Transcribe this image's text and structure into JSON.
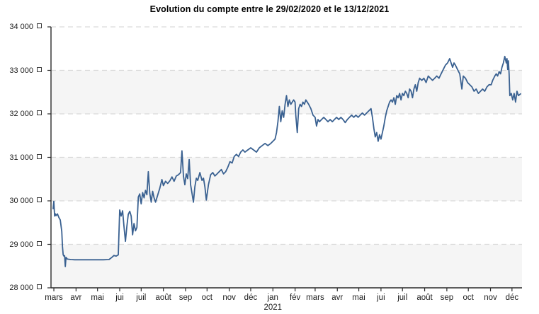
{
  "chart_data": {
    "type": "line",
    "title": "Evolution du compte entre le 29/02/2020 et le 13/12/2021",
    "date_start": "29/02/2020",
    "date_end": "13/12/2021",
    "ylabel": "",
    "xlabel": "",
    "ylim": [
      28000,
      34000
    ],
    "xlim_days": [
      -3,
      655
    ],
    "grid": "dashed-horizontal",
    "legend": "none",
    "line_color": "#3a6191",
    "band_color": "#f5f5f5",
    "grid_color": "#d9d9d9",
    "axis_color": "#2b2b2b",
    "y_axis_currency_symbol": "¤",
    "y_ticks": [
      {
        "value": 34000,
        "label": "34 000"
      },
      {
        "value": 33000,
        "label": "33 000"
      },
      {
        "value": 32000,
        "label": "32 000"
      },
      {
        "value": 31000,
        "label": "31 000"
      },
      {
        "value": 30000,
        "label": "30 000"
      },
      {
        "value": 29000,
        "label": "29 000"
      },
      {
        "value": 28000,
        "label": "28 000"
      }
    ],
    "shaded_bands": [
      [
        28000,
        29000
      ],
      [
        30000,
        31000
      ],
      [
        32000,
        33000
      ]
    ],
    "x_ticks": [
      {
        "label": "mars",
        "day": 1
      },
      {
        "label": "avr",
        "day": 32
      },
      {
        "label": "mai",
        "day": 62
      },
      {
        "label": "jui",
        "day": 93
      },
      {
        "label": "juil",
        "day": 123
      },
      {
        "label": "août",
        "day": 154
      },
      {
        "label": "sep",
        "day": 185
      },
      {
        "label": "oct",
        "day": 215
      },
      {
        "label": "nov",
        "day": 246
      },
      {
        "label": "déc",
        "day": 276
      },
      {
        "label": "jan",
        "day": 307
      },
      {
        "label": "fév",
        "day": 338
      },
      {
        "label": "mars",
        "day": 366
      },
      {
        "label": "avr",
        "day": 397
      },
      {
        "label": "mai",
        "day": 427
      },
      {
        "label": "jui",
        "day": 458
      },
      {
        "label": "juil",
        "day": 488
      },
      {
        "label": "août",
        "day": 519
      },
      {
        "label": "sep",
        "day": 550
      },
      {
        "label": "oct",
        "day": 580
      },
      {
        "label": "nov",
        "day": 611
      },
      {
        "label": "déc",
        "day": 641
      }
    ],
    "year_label": {
      "text": "2021",
      "under_tick_index": 10
    },
    "points": [
      [
        0,
        29820
      ],
      [
        1,
        29990
      ],
      [
        2,
        29650
      ],
      [
        3,
        29700
      ],
      [
        4,
        29660
      ],
      [
        6,
        29700
      ],
      [
        8,
        29620
      ],
      [
        10,
        29560
      ],
      [
        12,
        29300
      ],
      [
        13,
        28950
      ],
      [
        14,
        28760
      ],
      [
        15,
        28730
      ],
      [
        16,
        28740
      ],
      [
        17,
        28490
      ],
      [
        18,
        28700
      ],
      [
        20,
        28660
      ],
      [
        25,
        28650
      ],
      [
        30,
        28645
      ],
      [
        40,
        28645
      ],
      [
        50,
        28645
      ],
      [
        60,
        28645
      ],
      [
        70,
        28645
      ],
      [
        78,
        28650
      ],
      [
        82,
        28700
      ],
      [
        85,
        28745
      ],
      [
        88,
        28730
      ],
      [
        91,
        28760
      ],
      [
        93,
        29790
      ],
      [
        95,
        29650
      ],
      [
        97,
        29770
      ],
      [
        99,
        29400
      ],
      [
        101,
        29070
      ],
      [
        103,
        29410
      ],
      [
        105,
        29690
      ],
      [
        107,
        29760
      ],
      [
        109,
        29650
      ],
      [
        111,
        29220
      ],
      [
        113,
        29480
      ],
      [
        115,
        29310
      ],
      [
        117,
        29390
      ],
      [
        119,
        30090
      ],
      [
        121,
        30160
      ],
      [
        123,
        29930
      ],
      [
        125,
        30190
      ],
      [
        127,
        30070
      ],
      [
        129,
        30240
      ],
      [
        131,
        30140
      ],
      [
        133,
        30670
      ],
      [
        135,
        30170
      ],
      [
        137,
        29970
      ],
      [
        139,
        30220
      ],
      [
        141,
        30070
      ],
      [
        143,
        29970
      ],
      [
        146,
        30130
      ],
      [
        149,
        30290
      ],
      [
        152,
        30490
      ],
      [
        154,
        30350
      ],
      [
        157,
        30450
      ],
      [
        160,
        30400
      ],
      [
        163,
        30460
      ],
      [
        166,
        30550
      ],
      [
        169,
        30450
      ],
      [
        172,
        30570
      ],
      [
        175,
        30600
      ],
      [
        178,
        30650
      ],
      [
        180,
        31150
      ],
      [
        182,
        30570
      ],
      [
        184,
        30370
      ],
      [
        186,
        30620
      ],
      [
        188,
        30510
      ],
      [
        190,
        30950
      ],
      [
        192,
        30370
      ],
      [
        194,
        30170
      ],
      [
        196,
        29970
      ],
      [
        198,
        30320
      ],
      [
        200,
        30520
      ],
      [
        202,
        30470
      ],
      [
        205,
        30650
      ],
      [
        208,
        30470
      ],
      [
        210,
        30520
      ],
      [
        212,
        30320
      ],
      [
        214,
        30020
      ],
      [
        217,
        30370
      ],
      [
        220,
        30600
      ],
      [
        223,
        30650
      ],
      [
        226,
        30570
      ],
      [
        229,
        30620
      ],
      [
        232,
        30670
      ],
      [
        235,
        30720
      ],
      [
        238,
        30620
      ],
      [
        241,
        30670
      ],
      [
        244,
        30770
      ],
      [
        247,
        30900
      ],
      [
        250,
        30870
      ],
      [
        253,
        31020
      ],
      [
        256,
        31070
      ],
      [
        259,
        31020
      ],
      [
        262,
        31120
      ],
      [
        265,
        31170
      ],
      [
        268,
        31120
      ],
      [
        272,
        31170
      ],
      [
        276,
        31220
      ],
      [
        280,
        31170
      ],
      [
        284,
        31120
      ],
      [
        288,
        31220
      ],
      [
        292,
        31270
      ],
      [
        296,
        31320
      ],
      [
        300,
        31270
      ],
      [
        304,
        31320
      ],
      [
        307,
        31370
      ],
      [
        310,
        31420
      ],
      [
        312,
        31570
      ],
      [
        314,
        31820
      ],
      [
        316,
        32170
      ],
      [
        318,
        31820
      ],
      [
        320,
        32070
      ],
      [
        322,
        31920
      ],
      [
        324,
        32220
      ],
      [
        326,
        32420
      ],
      [
        328,
        32170
      ],
      [
        330,
        32320
      ],
      [
        332,
        32220
      ],
      [
        334,
        32270
      ],
      [
        336,
        32320
      ],
      [
        338,
        32270
      ],
      [
        339,
        31970
      ],
      [
        341,
        31570
      ],
      [
        343,
        32120
      ],
      [
        345,
        32220
      ],
      [
        347,
        32170
      ],
      [
        349,
        32270
      ],
      [
        351,
        32220
      ],
      [
        353,
        32320
      ],
      [
        355,
        32270
      ],
      [
        357,
        32220
      ],
      [
        360,
        32120
      ],
      [
        363,
        31970
      ],
      [
        366,
        31920
      ],
      [
        368,
        31720
      ],
      [
        370,
        31870
      ],
      [
        372,
        31820
      ],
      [
        375,
        31870
      ],
      [
        378,
        31920
      ],
      [
        381,
        31870
      ],
      [
        384,
        31820
      ],
      [
        387,
        31870
      ],
      [
        390,
        31820
      ],
      [
        393,
        31870
      ],
      [
        396,
        31920
      ],
      [
        399,
        31870
      ],
      [
        402,
        31920
      ],
      [
        405,
        31870
      ],
      [
        408,
        31800
      ],
      [
        411,
        31870
      ],
      [
        414,
        31920
      ],
      [
        417,
        31970
      ],
      [
        420,
        31920
      ],
      [
        423,
        31970
      ],
      [
        426,
        31920
      ],
      [
        429,
        31970
      ],
      [
        432,
        32020
      ],
      [
        435,
        31970
      ],
      [
        438,
        32020
      ],
      [
        441,
        32070
      ],
      [
        444,
        32120
      ],
      [
        446,
        31920
      ],
      [
        448,
        31670
      ],
      [
        450,
        31470
      ],
      [
        452,
        31570
      ],
      [
        454,
        31370
      ],
      [
        456,
        31520
      ],
      [
        458,
        31420
      ],
      [
        460,
        31570
      ],
      [
        462,
        31720
      ],
      [
        464,
        31920
      ],
      [
        466,
        32070
      ],
      [
        468,
        32170
      ],
      [
        470,
        32270
      ],
      [
        472,
        32320
      ],
      [
        474,
        32270
      ],
      [
        476,
        32370
      ],
      [
        478,
        32220
      ],
      [
        480,
        32420
      ],
      [
        482,
        32370
      ],
      [
        484,
        32470
      ],
      [
        486,
        32320
      ],
      [
        488,
        32470
      ],
      [
        490,
        32420
      ],
      [
        492,
        32520
      ],
      [
        494,
        32470
      ],
      [
        496,
        32370
      ],
      [
        498,
        32570
      ],
      [
        500,
        32520
      ],
      [
        502,
        32370
      ],
      [
        504,
        32570
      ],
      [
        506,
        32670
      ],
      [
        508,
        32520
      ],
      [
        510,
        32720
      ],
      [
        512,
        32820
      ],
      [
        515,
        32770
      ],
      [
        518,
        32820
      ],
      [
        521,
        32720
      ],
      [
        524,
        32870
      ],
      [
        527,
        32820
      ],
      [
        530,
        32770
      ],
      [
        533,
        32820
      ],
      [
        536,
        32870
      ],
      [
        539,
        32820
      ],
      [
        542,
        32920
      ],
      [
        545,
        33020
      ],
      [
        548,
        33120
      ],
      [
        551,
        33170
      ],
      [
        554,
        33270
      ],
      [
        556,
        33170
      ],
      [
        558,
        33070
      ],
      [
        560,
        33170
      ],
      [
        562,
        33120
      ],
      [
        565,
        33020
      ],
      [
        568,
        32920
      ],
      [
        571,
        32570
      ],
      [
        573,
        32870
      ],
      [
        576,
        32820
      ],
      [
        579,
        32720
      ],
      [
        582,
        32670
      ],
      [
        585,
        32620
      ],
      [
        588,
        32520
      ],
      [
        591,
        32570
      ],
      [
        594,
        32470
      ],
      [
        597,
        32520
      ],
      [
        600,
        32570
      ],
      [
        603,
        32520
      ],
      [
        606,
        32620
      ],
      [
        609,
        32670
      ],
      [
        612,
        32670
      ],
      [
        614,
        32770
      ],
      [
        617,
        32870
      ],
      [
        619,
        32920
      ],
      [
        621,
        32870
      ],
      [
        623,
        32970
      ],
      [
        625,
        32920
      ],
      [
        627,
        33070
      ],
      [
        629,
        33170
      ],
      [
        631,
        33320
      ],
      [
        633,
        33170
      ],
      [
        634,
        33270
      ],
      [
        635,
        33020
      ],
      [
        636,
        33220
      ],
      [
        637,
        32920
      ],
      [
        638,
        32420
      ],
      [
        640,
        32470
      ],
      [
        642,
        32320
      ],
      [
        644,
        32470
      ],
      [
        646,
        32270
      ],
      [
        648,
        32520
      ],
      [
        650,
        32420
      ],
      [
        653,
        32460
      ]
    ]
  }
}
